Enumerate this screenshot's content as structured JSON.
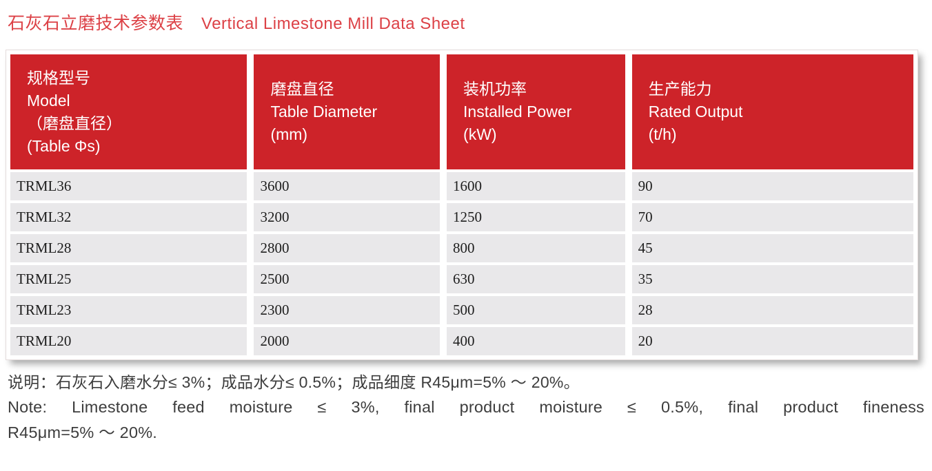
{
  "page": {
    "title_cn": "石灰石立磨技术参数表",
    "title_en": "Vertical Limestone Mill Data Sheet"
  },
  "table": {
    "columns": [
      {
        "id": "model",
        "header": "规格型号\nModel\n（磨盘直径）\n(Table Φs)"
      },
      {
        "id": "table_diameter",
        "header": "磨盘直径\nTable Diameter\n(mm)"
      },
      {
        "id": "installed_power",
        "header": "装机功率\nInstalled Power\n(kW)"
      },
      {
        "id": "rated_output",
        "header": "生产能力\nRated Output\n(t/h)"
      }
    ],
    "rows": [
      {
        "model": "TRML36",
        "table_diameter_mm": "3600",
        "installed_power_kw": "1600",
        "rated_output_tph": "90"
      },
      {
        "model": "TRML32",
        "table_diameter_mm": "3200",
        "installed_power_kw": "1250",
        "rated_output_tph": "70"
      },
      {
        "model": "TRML28",
        "table_diameter_mm": "2800",
        "installed_power_kw": "800",
        "rated_output_tph": "45"
      },
      {
        "model": "TRML25",
        "table_diameter_mm": "2500",
        "installed_power_kw": "630",
        "rated_output_tph": "35"
      },
      {
        "model": "TRML23",
        "table_diameter_mm": "2300",
        "installed_power_kw": "500",
        "rated_output_tph": "28"
      },
      {
        "model": "TRML20",
        "table_diameter_mm": "2000",
        "installed_power_kw": "400",
        "rated_output_tph": "20"
      }
    ]
  },
  "notes": {
    "cn": "说明：石灰石入磨水分≤ 3%；成品水分≤ 0.5%；成品细度 R45μm=5% ～ 20%。",
    "en_line1": "Note: Limestone feed moisture ≤ 3%, final product moisture ≤ 0.5%, final product fineness",
    "en_line2": "R45μm=5% ～ 20%."
  },
  "colors": {
    "header_bg": "#cd2329",
    "title_red": "#dc4146",
    "row_bg": "#e9e8ea",
    "note_text": "#3d3d3d"
  }
}
